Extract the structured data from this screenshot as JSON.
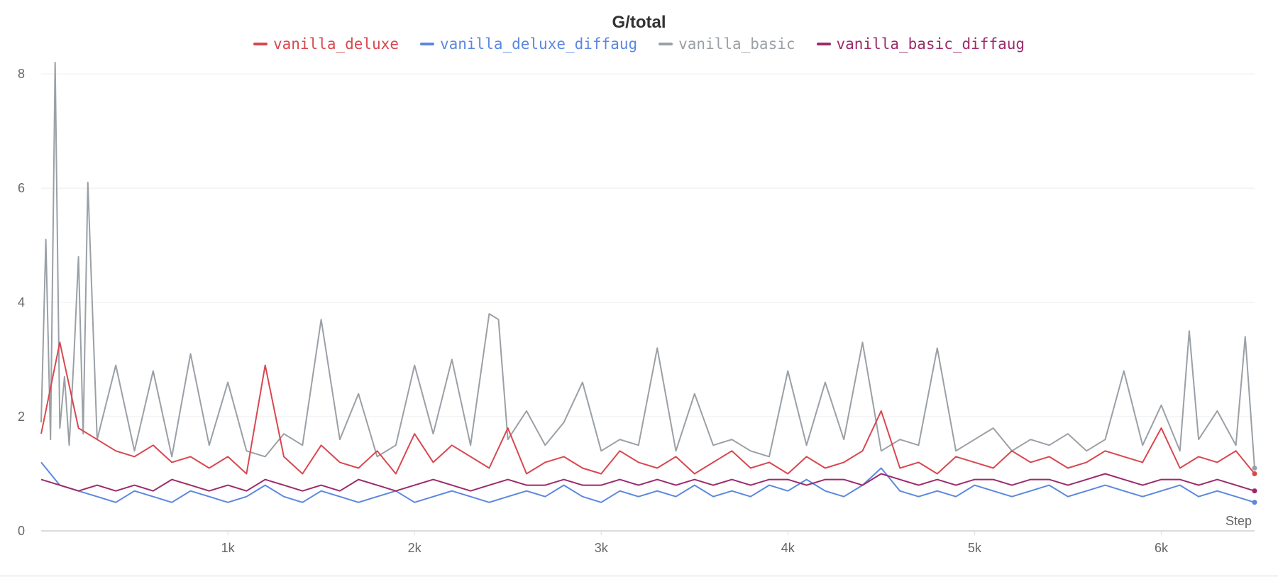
{
  "chart_data": {
    "type": "line",
    "title": "G/total",
    "xlabel": "Step",
    "ylabel": "",
    "xlim": [
      0,
      6500
    ],
    "ylim": [
      0,
      8.2
    ],
    "x_ticks": [
      1000,
      2000,
      3000,
      4000,
      5000,
      6000
    ],
    "x_tick_labels": [
      "1k",
      "2k",
      "3k",
      "4k",
      "5k",
      "6k"
    ],
    "y_ticks": [
      0,
      2,
      4,
      6,
      8
    ],
    "y_tick_labels": [
      "0",
      "2",
      "4",
      "6",
      "8"
    ],
    "grid": "horizontal",
    "legend_position": "top-center",
    "sample_step": 100,
    "series": [
      {
        "name": "vanilla_deluxe",
        "color": "#d9474f",
        "x": [
          0,
          100,
          200,
          300,
          400,
          500,
          600,
          700,
          800,
          900,
          1000,
          1100,
          1200,
          1300,
          1400,
          1500,
          1600,
          1700,
          1800,
          1900,
          2000,
          2100,
          2200,
          2300,
          2400,
          2500,
          2600,
          2700,
          2800,
          2900,
          3000,
          3100,
          3200,
          3300,
          3400,
          3500,
          3600,
          3700,
          3800,
          3900,
          4000,
          4100,
          4200,
          4300,
          4400,
          4500,
          4600,
          4700,
          4800,
          4900,
          5000,
          5100,
          5200,
          5300,
          5400,
          5500,
          5600,
          5700,
          5800,
          5900,
          6000,
          6100,
          6200,
          6300,
          6400,
          6500
        ],
        "values": [
          1.7,
          3.3,
          1.8,
          1.6,
          1.4,
          1.3,
          1.5,
          1.2,
          1.3,
          1.1,
          1.3,
          1.0,
          2.9,
          1.3,
          1.0,
          1.5,
          1.2,
          1.1,
          1.4,
          1.0,
          1.7,
          1.2,
          1.5,
          1.3,
          1.1,
          1.8,
          1.0,
          1.2,
          1.3,
          1.1,
          1.0,
          1.4,
          1.2,
          1.1,
          1.3,
          1.0,
          1.2,
          1.4,
          1.1,
          1.2,
          1.0,
          1.3,
          1.1,
          1.2,
          1.4,
          2.1,
          1.1,
          1.2,
          1.0,
          1.3,
          1.2,
          1.1,
          1.4,
          1.2,
          1.3,
          1.1,
          1.2,
          1.4,
          1.3,
          1.2,
          1.8,
          1.1,
          1.3,
          1.2,
          1.4,
          1.0
        ]
      },
      {
        "name": "vanilla_deluxe_diffaug",
        "color": "#5b87e0",
        "x": [
          0,
          100,
          200,
          300,
          400,
          500,
          600,
          700,
          800,
          900,
          1000,
          1100,
          1200,
          1300,
          1400,
          1500,
          1600,
          1700,
          1800,
          1900,
          2000,
          2100,
          2200,
          2300,
          2400,
          2500,
          2600,
          2700,
          2800,
          2900,
          3000,
          3100,
          3200,
          3300,
          3400,
          3500,
          3600,
          3700,
          3800,
          3900,
          4000,
          4100,
          4200,
          4300,
          4400,
          4500,
          4600,
          4700,
          4800,
          4900,
          5000,
          5100,
          5200,
          5300,
          5400,
          5500,
          5600,
          5700,
          5800,
          5900,
          6000,
          6100,
          6200,
          6300,
          6400,
          6500
        ],
        "values": [
          1.2,
          0.8,
          0.7,
          0.6,
          0.5,
          0.7,
          0.6,
          0.5,
          0.7,
          0.6,
          0.5,
          0.6,
          0.8,
          0.6,
          0.5,
          0.7,
          0.6,
          0.5,
          0.6,
          0.7,
          0.5,
          0.6,
          0.7,
          0.6,
          0.5,
          0.6,
          0.7,
          0.6,
          0.8,
          0.6,
          0.5,
          0.7,
          0.6,
          0.7,
          0.6,
          0.8,
          0.6,
          0.7,
          0.6,
          0.8,
          0.7,
          0.9,
          0.7,
          0.6,
          0.8,
          1.1,
          0.7,
          0.6,
          0.7,
          0.6,
          0.8,
          0.7,
          0.6,
          0.7,
          0.8,
          0.6,
          0.7,
          0.8,
          0.7,
          0.6,
          0.7,
          0.8,
          0.6,
          0.7,
          0.6,
          0.5
        ]
      },
      {
        "name": "vanilla_basic",
        "color": "#9aa0a6",
        "x": [
          0,
          25,
          50,
          75,
          100,
          125,
          150,
          175,
          200,
          225,
          250,
          300,
          400,
          500,
          600,
          700,
          800,
          900,
          1000,
          1100,
          1200,
          1300,
          1400,
          1500,
          1600,
          1700,
          1800,
          1900,
          2000,
          2100,
          2200,
          2300,
          2400,
          2450,
          2500,
          2600,
          2700,
          2800,
          2900,
          3000,
          3100,
          3200,
          3300,
          3400,
          3500,
          3600,
          3700,
          3800,
          3900,
          4000,
          4100,
          4200,
          4300,
          4400,
          4500,
          4600,
          4700,
          4800,
          4900,
          5000,
          5100,
          5200,
          5300,
          5400,
          5500,
          5600,
          5700,
          5800,
          5900,
          6000,
          6100,
          6150,
          6200,
          6300,
          6400,
          6450,
          6500
        ],
        "values": [
          1.9,
          5.1,
          1.6,
          8.2,
          1.8,
          2.7,
          1.5,
          3.0,
          4.8,
          1.7,
          6.1,
          1.6,
          2.9,
          1.4,
          2.8,
          1.3,
          3.1,
          1.5,
          2.6,
          1.4,
          1.3,
          1.7,
          1.5,
          3.7,
          1.6,
          2.4,
          1.3,
          1.5,
          2.9,
          1.7,
          3.0,
          1.5,
          3.8,
          3.7,
          1.6,
          2.1,
          1.5,
          1.9,
          2.6,
          1.4,
          1.6,
          1.5,
          3.2,
          1.4,
          2.4,
          1.5,
          1.6,
          1.4,
          1.3,
          2.8,
          1.5,
          2.6,
          1.6,
          3.3,
          1.4,
          1.6,
          1.5,
          3.2,
          1.4,
          1.6,
          1.8,
          1.4,
          1.6,
          1.5,
          1.7,
          1.4,
          1.6,
          2.8,
          1.5,
          2.2,
          1.4,
          3.5,
          1.6,
          2.1,
          1.5,
          3.4,
          1.1
        ]
      },
      {
        "name": "vanilla_basic_diffaug",
        "color": "#9c2a6b",
        "x": [
          0,
          100,
          200,
          300,
          400,
          500,
          600,
          700,
          800,
          900,
          1000,
          1100,
          1200,
          1300,
          1400,
          1500,
          1600,
          1700,
          1800,
          1900,
          2000,
          2100,
          2200,
          2300,
          2400,
          2500,
          2600,
          2700,
          2800,
          2900,
          3000,
          3100,
          3200,
          3300,
          3400,
          3500,
          3600,
          3700,
          3800,
          3900,
          4000,
          4100,
          4200,
          4300,
          4400,
          4500,
          4600,
          4700,
          4800,
          4900,
          5000,
          5100,
          5200,
          5300,
          5400,
          5500,
          5600,
          5700,
          5800,
          5900,
          6000,
          6100,
          6200,
          6300,
          6400,
          6500
        ],
        "values": [
          0.9,
          0.8,
          0.7,
          0.8,
          0.7,
          0.8,
          0.7,
          0.9,
          0.8,
          0.7,
          0.8,
          0.7,
          0.9,
          0.8,
          0.7,
          0.8,
          0.7,
          0.9,
          0.8,
          0.7,
          0.8,
          0.9,
          0.8,
          0.7,
          0.8,
          0.9,
          0.8,
          0.8,
          0.9,
          0.8,
          0.8,
          0.9,
          0.8,
          0.9,
          0.8,
          0.9,
          0.8,
          0.9,
          0.8,
          0.9,
          0.9,
          0.8,
          0.9,
          0.9,
          0.8,
          1.0,
          0.9,
          0.8,
          0.9,
          0.8,
          0.9,
          0.9,
          0.8,
          0.9,
          0.9,
          0.8,
          0.9,
          1.0,
          0.9,
          0.8,
          0.9,
          0.9,
          0.8,
          0.9,
          0.8,
          0.7
        ]
      }
    ]
  }
}
